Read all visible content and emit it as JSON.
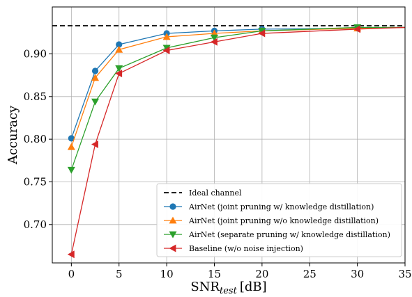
{
  "chart_data": {
    "type": "line",
    "xlabel": "SNR",
    "xlabel_sub": "test",
    "xlabel_unit": "[dB]",
    "ylabel": "Accuracy",
    "xlim": [
      -2,
      35
    ],
    "ylim": [
      0.655,
      0.955
    ],
    "xticks": [
      0,
      5,
      10,
      15,
      20,
      25,
      30,
      35
    ],
    "yticks": [
      0.7,
      0.75,
      0.8,
      0.85,
      0.9
    ],
    "ytick_labels": [
      "0.70",
      "0.75",
      "0.80",
      "0.85",
      "0.90"
    ],
    "grid": true,
    "legend_position": "lower-right",
    "reference_line": {
      "name": "Ideal channel",
      "y": 0.933,
      "color": "#000000",
      "style": "dashed"
    },
    "x": [
      0,
      2.5,
      5,
      10,
      15,
      20,
      30
    ],
    "series": [
      {
        "name": "AirNet (joint pruning w/ knowledge distillation)",
        "marker": "circle",
        "color": "#1f77b4",
        "values": [
          0.801,
          0.88,
          0.911,
          0.924,
          0.927,
          0.929,
          0.93
        ]
      },
      {
        "name": "AirNet (joint pruning w/o knowledge distillation)",
        "marker": "triangle-up",
        "color": "#ff7f0e",
        "values": [
          0.791,
          0.872,
          0.905,
          0.92,
          0.924,
          0.927,
          0.93
        ]
      },
      {
        "name": "AirNet (separate pruning w/ knowledge distillation)",
        "marker": "triangle-down",
        "color": "#2ca02c",
        "values": [
          0.764,
          0.844,
          0.883,
          0.907,
          0.919,
          0.927,
          0.931
        ]
      },
      {
        "name": "Baseline (w/o noise injection)",
        "marker": "triangle-left",
        "color": "#d62728",
        "values": [
          0.665,
          0.794,
          0.877,
          0.904,
          0.914,
          0.924,
          0.929
        ]
      }
    ],
    "tail_x": 35,
    "tail_value": 0.931
  }
}
